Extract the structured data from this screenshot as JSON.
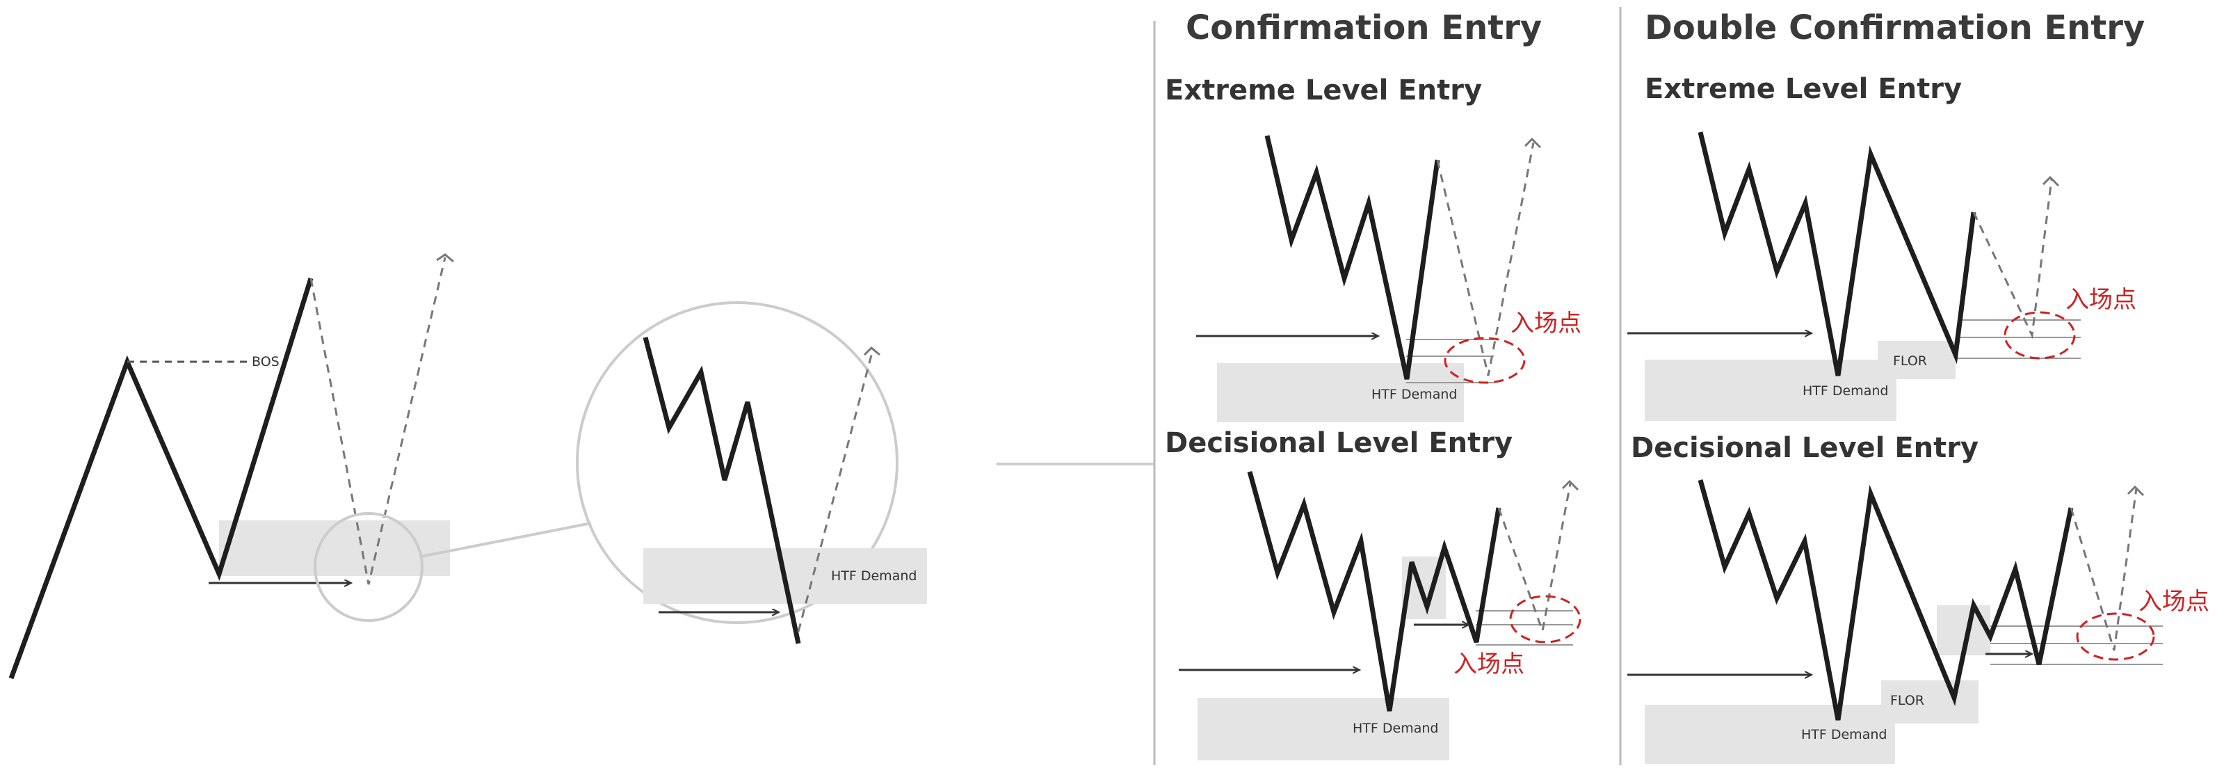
{
  "headers": {
    "confirmation": "Confirmation Entry",
    "double_confirmation": "Double Confirmation Entry"
  },
  "subheaders": {
    "extreme": "Extreme Level Entry",
    "decisional": "Decisional Level Entry"
  },
  "labels": {
    "bos": "BOS",
    "htf_demand": "HTF Demand",
    "flor": "FLOR",
    "entry_point": "入场点"
  },
  "colors": {
    "price_line": "#1e1e1e",
    "zone_fill": "#e4e4e4",
    "dashed": "#777777",
    "entry_marker": "#cc2222",
    "divider": "#bbbbbb",
    "magnifier": "#cccccc"
  }
}
